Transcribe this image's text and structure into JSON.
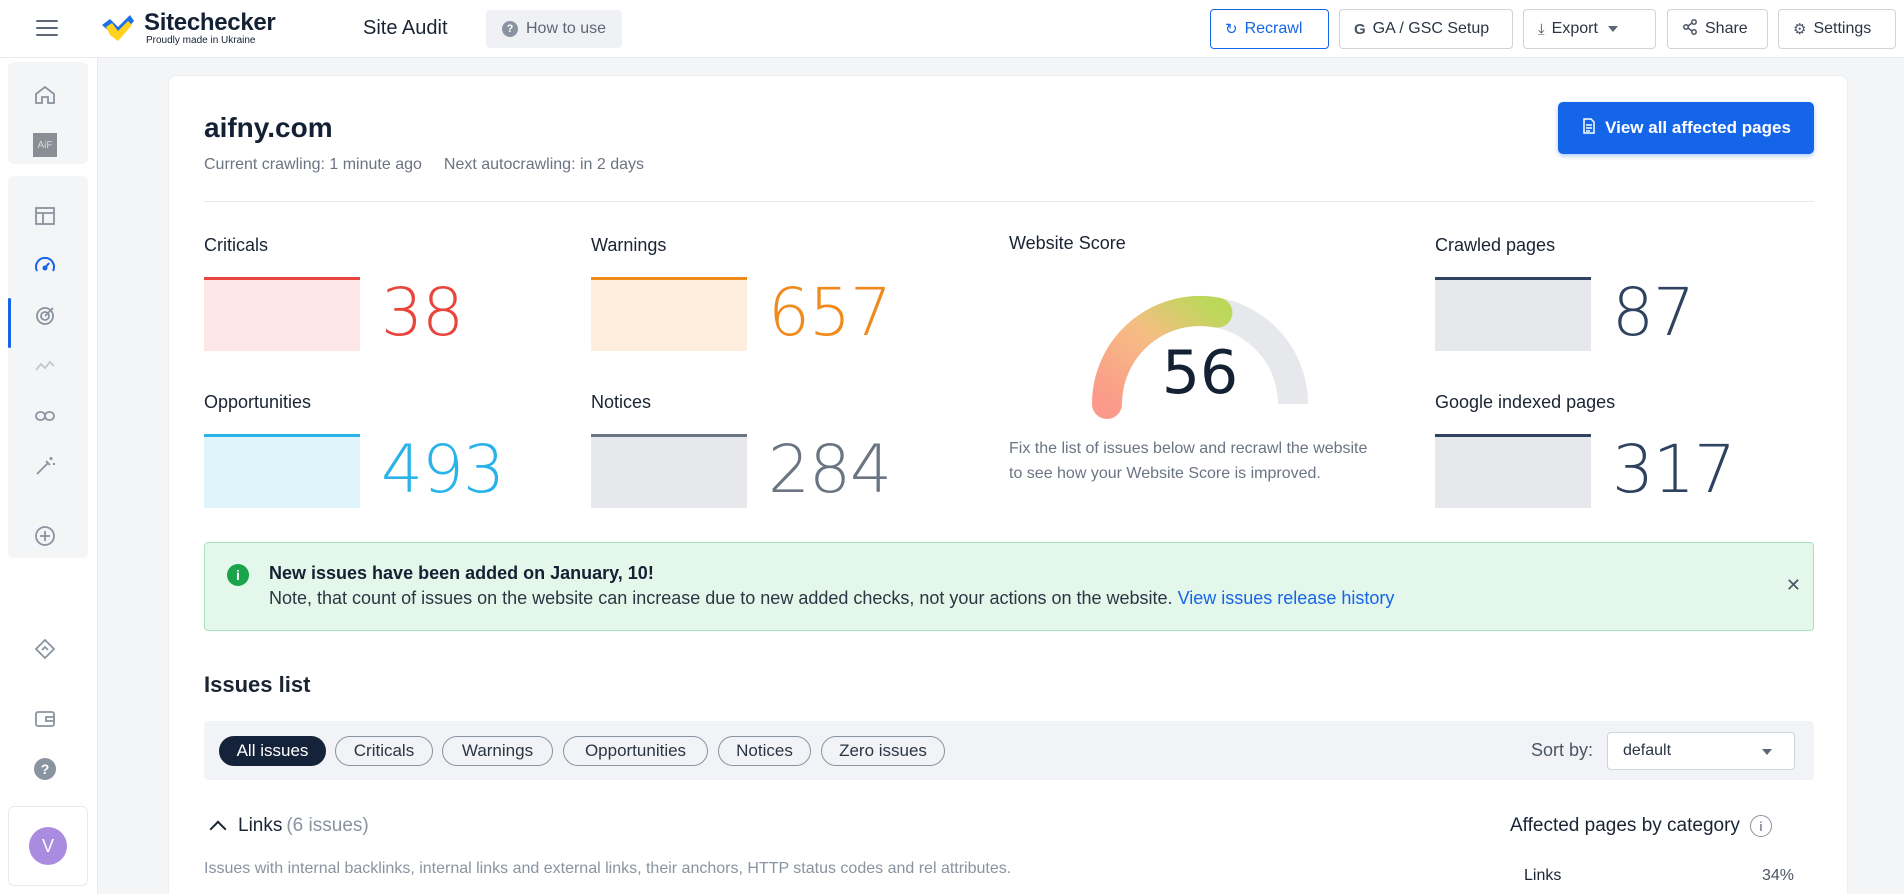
{
  "header": {
    "logo_name": "Sitechecker",
    "logo_tagline": "Proudly made in Ukraine",
    "page_title": "Site Audit",
    "how_to_use": "How to use",
    "buttons": {
      "recrawl": "Recrawl",
      "ga_gsc": "GA / GSC Setup",
      "export": "Export",
      "share": "Share",
      "settings": "Settings"
    }
  },
  "sidebar": {
    "items": [
      "home-icon",
      "project-thumbnail",
      "dashboard-icon",
      "site-audit-icon",
      "rank-tracker-icon",
      "analytics-icon",
      "links-icon",
      "magic-tools-icon",
      "add-project-icon",
      "integrations-icon",
      "billing-icon",
      "help-icon"
    ],
    "avatar_initial": "V"
  },
  "site": {
    "domain": "aifny.com",
    "current_crawling": "Current crawling: 1 minute ago",
    "next_autocrawling": "Next autocrawling: in 2 days",
    "view_all": "View all affected pages"
  },
  "stats": {
    "criticals": {
      "label": "Criticals",
      "value": "38",
      "color": "#e8453c",
      "bg": "#fde6e5"
    },
    "warnings": {
      "label": "Warnings",
      "value": "657",
      "color": "#f08a1c",
      "bg": "#fdeede"
    },
    "opportunities": {
      "label": "Opportunities",
      "value": "493",
      "color": "#28b3ea",
      "bg": "#e0f4fc"
    },
    "notices": {
      "label": "Notices",
      "value": "284",
      "color": "#6b7482",
      "bg": "#e6e8ec"
    },
    "crawled": {
      "label": "Crawled pages",
      "value": "87",
      "color": "#2f4260",
      "bg": "#e6e8ec"
    },
    "indexed": {
      "label": "Google indexed pages",
      "value": "317",
      "color": "#2f4260",
      "bg": "#e6e8ec"
    }
  },
  "score": {
    "label": "Website Score",
    "value": "56",
    "fraction": 0.56,
    "note": "Fix the list of issues below and recrawl the website to see how your Website Score is improved."
  },
  "alert": {
    "title": "New issues have been added on January, 10!",
    "body": "Note, that count of issues on the website can increase due to new added checks, not your actions on the website.",
    "link": "View issues release history"
  },
  "issues": {
    "title": "Issues list",
    "filters": [
      "All issues",
      "Criticals",
      "Warnings",
      "Opportunities",
      "Notices",
      "Zero issues"
    ],
    "sort_label": "Sort by:",
    "sort_value": "default"
  },
  "category": {
    "name": "Links",
    "count": "(6 issues)",
    "description": "Issues with internal backlinks, internal links and external links, their anchors, HTTP status codes and rel attributes."
  },
  "affected": {
    "title": "Affected pages by category",
    "rows": [
      {
        "label": "Links",
        "value": "34%"
      }
    ]
  }
}
